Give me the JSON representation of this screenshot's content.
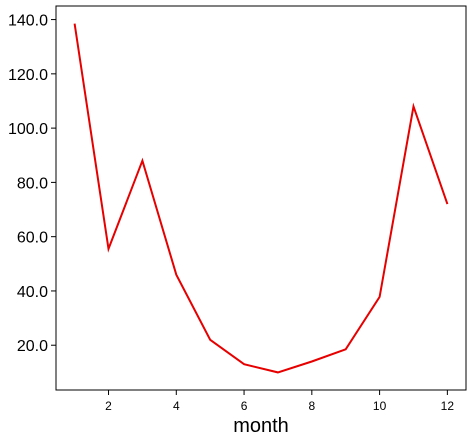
{
  "chart_data": {
    "type": "line",
    "title": "",
    "xlabel": "month",
    "ylabel": "",
    "x": [
      1,
      2,
      3,
      4,
      5,
      6,
      7,
      8,
      9,
      10,
      11,
      12
    ],
    "series": [
      {
        "values": [
          138.5,
          55.5,
          88.0,
          46.0,
          22.0,
          13.0,
          10.0,
          14.0,
          18.5,
          37.8,
          108.0,
          72.0
        ],
        "color": "#e60000"
      }
    ],
    "xticks": [
      2,
      4,
      6,
      8,
      10,
      12
    ],
    "xtick_labels": [
      "2",
      "4",
      "6",
      "8",
      "10",
      "12"
    ],
    "yticks": [
      20,
      40,
      60,
      80,
      100,
      120,
      140
    ],
    "ytick_labels": [
      "20.0",
      "40.0",
      "60.0",
      "80.0",
      "100.0",
      "120.0",
      "140.0"
    ],
    "xlim": [
      0.45,
      12.55
    ],
    "ylim": [
      3.5,
      145.0
    ],
    "grid": false,
    "legend": "none"
  }
}
